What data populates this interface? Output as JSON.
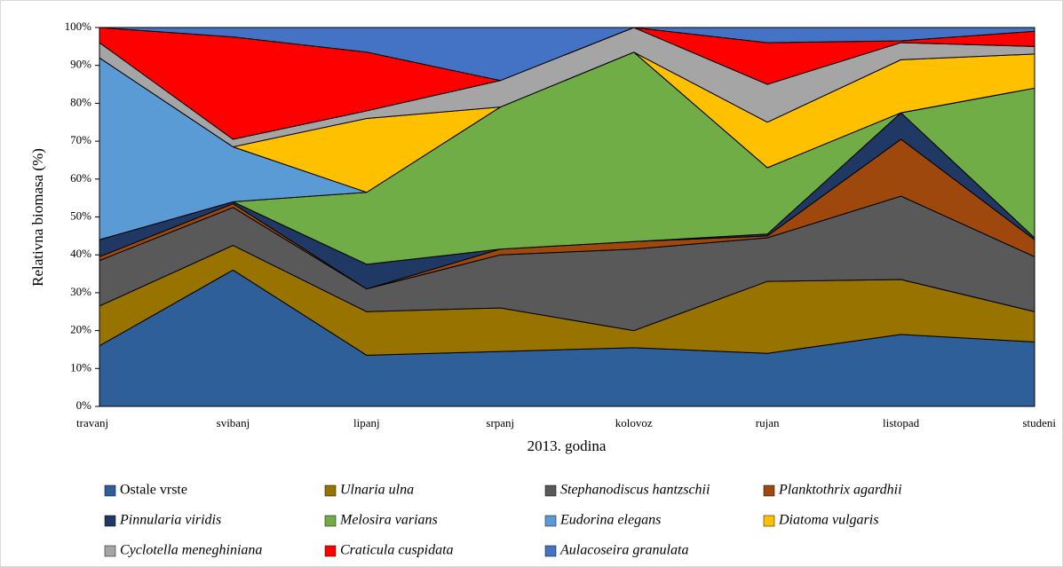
{
  "chart_data": {
    "type": "stacked-area",
    "y_label": "Relativna biomasa  (%)",
    "x_label": "2013. godina",
    "categories": [
      "travanj",
      "svibanj",
      "lipanj",
      "srpanj",
      "kolovoz",
      "rujan",
      "listopad",
      "studeni"
    ],
    "ylim": [
      0,
      100
    ],
    "yticks": [
      {
        "value": 0,
        "label": "0%"
      },
      {
        "value": 10,
        "label": "10%"
      },
      {
        "value": 20,
        "label": "20%"
      },
      {
        "value": 30,
        "label": "30%"
      },
      {
        "value": 40,
        "label": "40%"
      },
      {
        "value": 50,
        "label": "50%"
      },
      {
        "value": 60,
        "label": "60%"
      },
      {
        "value": 70,
        "label": "70%"
      },
      {
        "value": 80,
        "label": "80%"
      },
      {
        "value": 90,
        "label": "90%"
      },
      {
        "value": 100,
        "label": "100%"
      }
    ],
    "series": [
      {
        "name": "Ostale vrste",
        "italic": false,
        "color": "#2e5f98",
        "values": [
          16,
          36,
          13.5,
          14.5,
          15.5,
          14,
          19,
          17
        ]
      },
      {
        "name": "Ulnaria ulna",
        "italic": true,
        "color": "#997300",
        "values": [
          10.5,
          6.5,
          11.5,
          11.5,
          4.5,
          19,
          14.5,
          8
        ]
      },
      {
        "name": "Stephanodiscus hantzschii",
        "italic": true,
        "color": "#595959",
        "values": [
          12,
          10,
          6,
          14,
          21.5,
          11.5,
          22,
          14.5
        ]
      },
      {
        "name": "Planktothrix agardhii",
        "italic": true,
        "color": "#9e480e",
        "values": [
          1,
          1,
          0,
          1.5,
          2,
          0.5,
          15,
          4.5
        ]
      },
      {
        "name": "Pinnularia viridis",
        "italic": true,
        "color": "#203864",
        "values": [
          4.5,
          0.5,
          6.5,
          0,
          0,
          0.5,
          7,
          0.5
        ]
      },
      {
        "name": "Melosira varians",
        "italic": true,
        "color": "#70ad47",
        "values": [
          0,
          0,
          19,
          37.5,
          50,
          17.5,
          0,
          39.5
        ]
      },
      {
        "name": "Eudorina elegans",
        "italic": true,
        "color": "#5b9bd5",
        "values": [
          48,
          14.5,
          0,
          0,
          0,
          0,
          0,
          0
        ]
      },
      {
        "name": "Diatoma vulgaris",
        "italic": true,
        "color": "#ffc000",
        "values": [
          0,
          0,
          19.5,
          0,
          0,
          12,
          14,
          9
        ]
      },
      {
        "name": "Cyclotella meneghiniana",
        "italic": true,
        "color": "#a5a5a5",
        "values": [
          4,
          2,
          2,
          7,
          6.5,
          10,
          4.5,
          2
        ]
      },
      {
        "name": "Craticula cuspidata",
        "italic": true,
        "color": "#ff0000",
        "values": [
          4,
          27,
          15.5,
          0,
          0,
          11,
          0.5,
          4
        ]
      },
      {
        "name": "Aulacoseira granulata",
        "italic": true,
        "color": "#4472c4",
        "values": [
          0,
          2.5,
          6.5,
          14,
          0,
          4,
          3.5,
          1
        ]
      }
    ]
  }
}
